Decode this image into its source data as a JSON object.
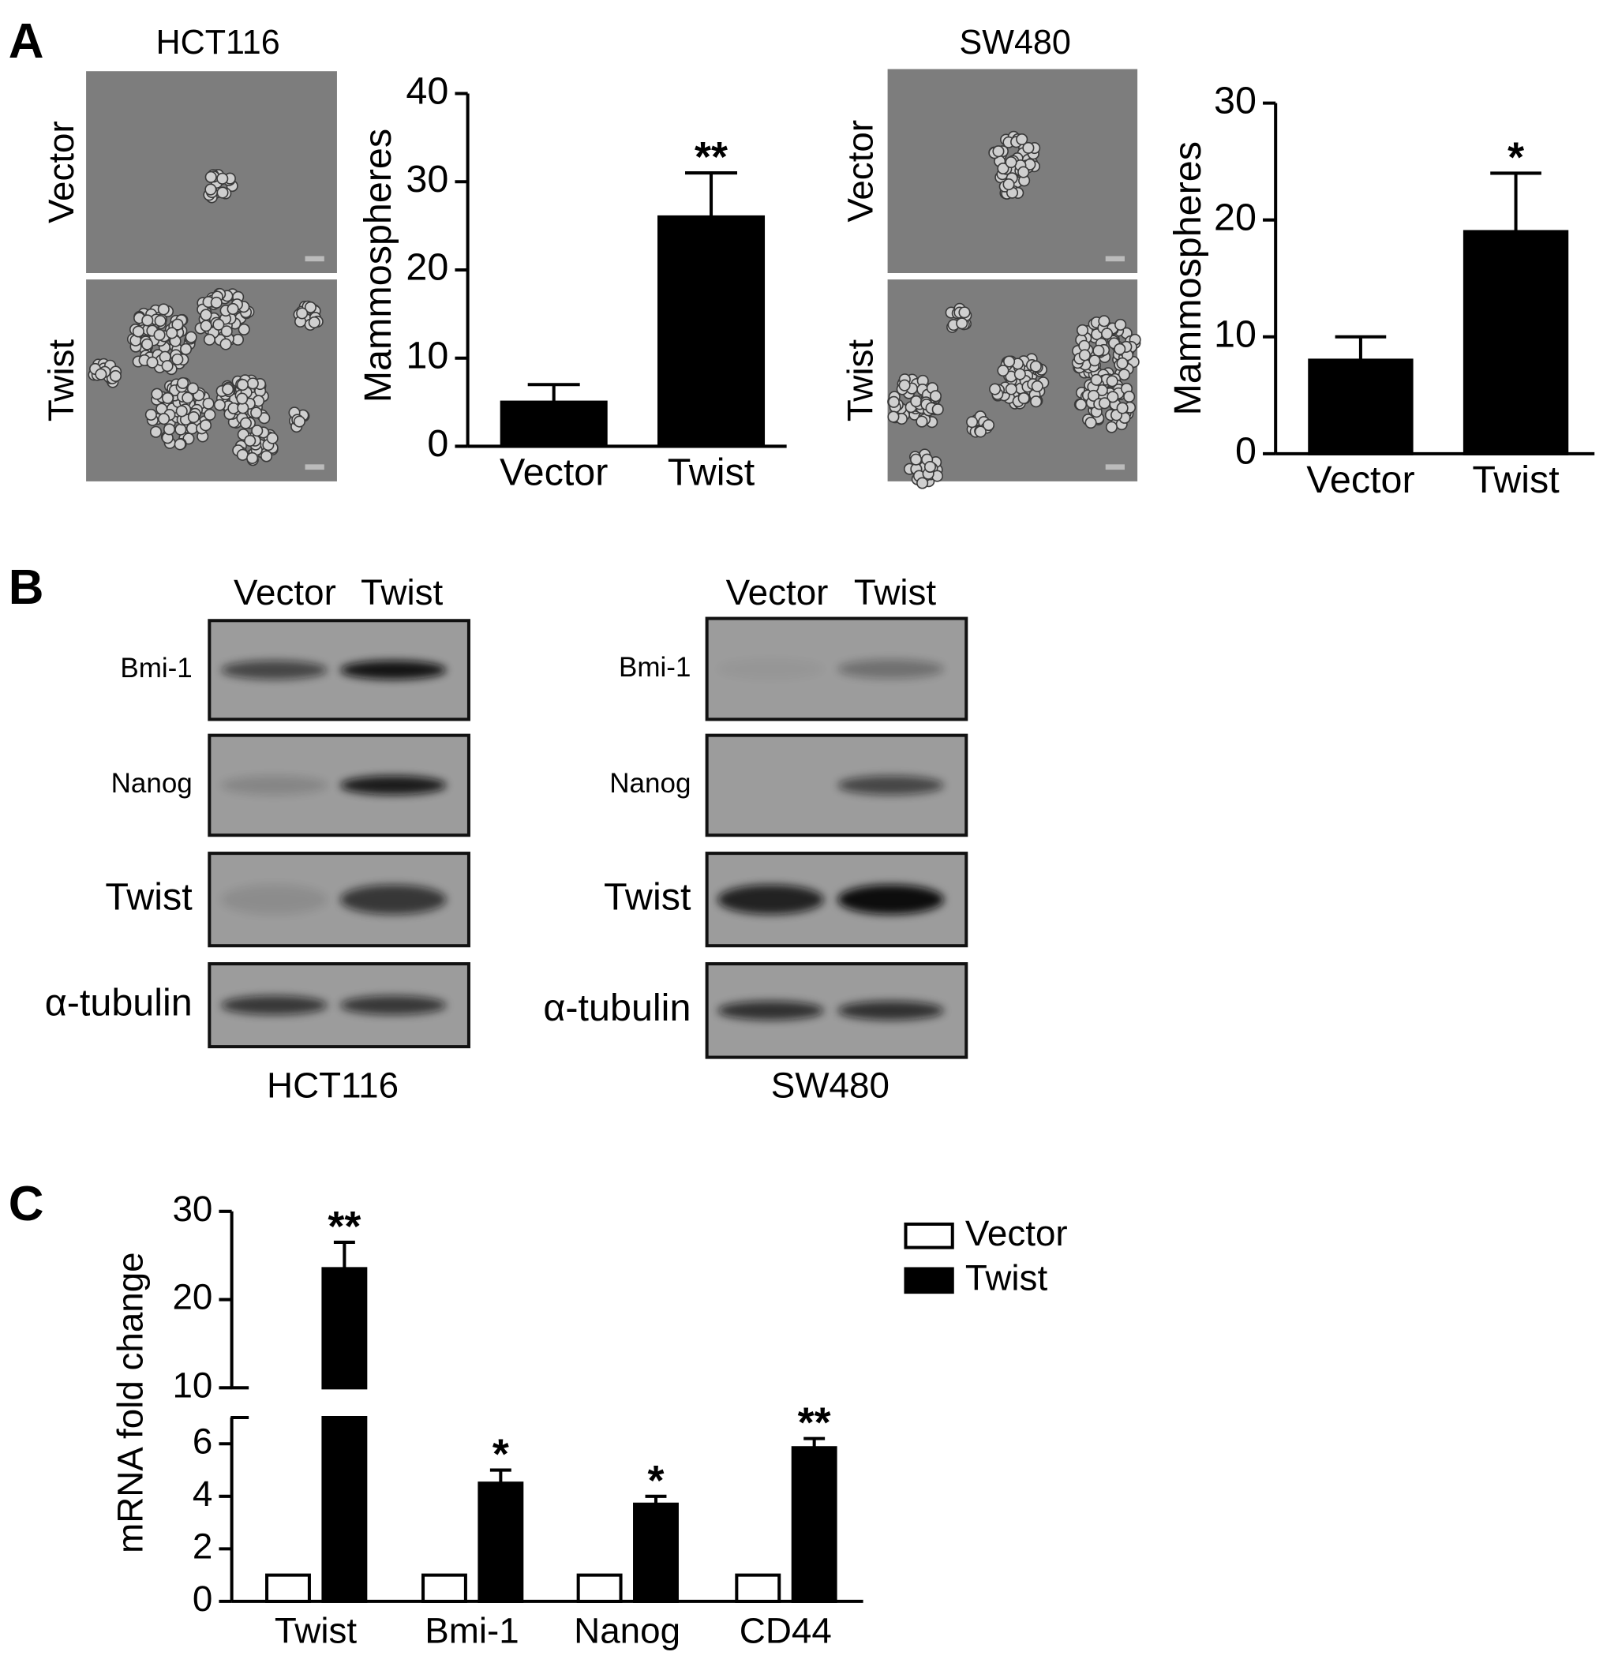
{
  "panel_labels": [
    "A",
    "B",
    "C"
  ],
  "micrographs": [
    {
      "title": "HCT116",
      "rows": [
        "Vector",
        "Twist"
      ]
    },
    {
      "title": "SW480",
      "rows": [
        "Vector",
        "Twist"
      ]
    }
  ],
  "blots": [
    {
      "cell_line": "HCT116",
      "lanes": [
        "Vector",
        "Twist"
      ],
      "proteins": [
        "Bmi-1",
        "Nanog",
        "Twist",
        "α-tubulin"
      ]
    },
    {
      "cell_line": "SW480",
      "lanes": [
        "Vector",
        "Twist"
      ],
      "proteins": [
        "Bmi-1",
        "Nanog",
        "Twist",
        "α-tubulin"
      ]
    }
  ],
  "chart_data": [
    {
      "type": "bar",
      "y_label": "Mammospheres",
      "categories": [
        "Vector",
        "Twist"
      ],
      "values": [
        5,
        26
      ],
      "errors": [
        2,
        5
      ],
      "annotations": [
        null,
        "**"
      ],
      "color": "#000000",
      "ylim": [
        0,
        40
      ],
      "yticks": [
        0,
        10,
        20,
        30,
        40
      ]
    },
    {
      "type": "bar",
      "y_label": "Mammospheres",
      "categories": [
        "Vector",
        "Twist"
      ],
      "values": [
        8,
        19
      ],
      "errors": [
        2,
        5
      ],
      "annotations": [
        null,
        "*"
      ],
      "color": "#000000",
      "ylim": [
        0,
        30
      ],
      "yticks": [
        0,
        10,
        20,
        30
      ]
    },
    {
      "type": "bar",
      "y_label": "mRNA fold change",
      "categories": [
        "Twist",
        "Bmi-1",
        "Nanog",
        "CD44"
      ],
      "series": [
        {
          "name": "Vector",
          "color": "#ffffff",
          "values": [
            1,
            1,
            1,
            1
          ]
        },
        {
          "name": "Twist",
          "color": "#000000",
          "values": [
            23.5,
            4.5,
            3.7,
            5.85
          ],
          "errors": [
            3,
            0.5,
            0.3,
            0.35
          ]
        }
      ],
      "annotations": [
        "**",
        "*",
        "*",
        "**"
      ],
      "ylim": [
        0,
        30
      ],
      "ybreak": [
        7,
        10
      ],
      "yticks": [
        0,
        2,
        4,
        6,
        10,
        20,
        30
      ],
      "legend": "upper right"
    }
  ]
}
